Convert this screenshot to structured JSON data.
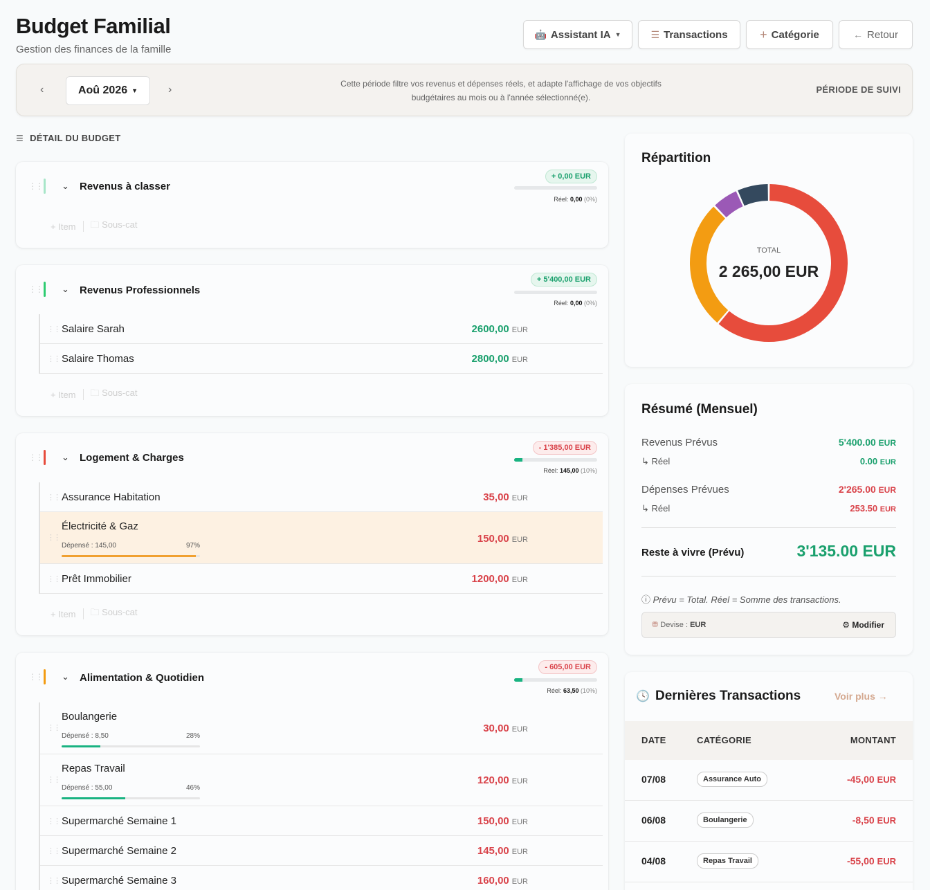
{
  "header": {
    "title": "Budget Familial",
    "subtitle": "Gestion des finances de la famille",
    "buttons": {
      "assistant": "Assistant IA",
      "transactions": "Transactions",
      "category": "Catégorie",
      "back": "Retour"
    }
  },
  "period": {
    "month": "Aoû 2026",
    "note_line1": "Cette période filtre vos revenus et dépenses réels, et adapte l'affichage de vos objectifs",
    "note_line2": "budgétaires au mois ou à l'année sélectionné(e).",
    "tag": "PÉRIODE DE SUIVI"
  },
  "budget": {
    "section_title": "DÉTAIL DU BUDGET",
    "action_item": "Item",
    "action_subcat": "Sous-cat",
    "unit": "EUR",
    "spent_label": "Dépensé :",
    "real_label": "Réel:",
    "categories": [
      {
        "name": "Revenus à classer",
        "color": "#a8e6c9",
        "badge": "+ 0,00 EUR",
        "real": "0,00",
        "real_pct": "(0%)",
        "progress_pct": 0,
        "items": []
      },
      {
        "name": "Revenus Professionnels",
        "color": "#2ecc71",
        "badge": "+ 5'400,00 EUR",
        "real": "0,00",
        "real_pct": "(0%)",
        "progress_pct": 0,
        "items": [
          {
            "name": "Salaire Sarah",
            "amount": "2600,00"
          },
          {
            "name": "Salaire Thomas",
            "amount": "2800,00"
          }
        ]
      },
      {
        "name": "Logement & Charges",
        "color": "#e74c3c",
        "badge": "- 1'385,00 EUR",
        "real": "145,00",
        "real_pct": "(10%)",
        "progress_pct": 10,
        "items": [
          {
            "name": "Assurance Habitation",
            "amount": "35,00"
          },
          {
            "name": "Électricité & Gaz",
            "amount": "150,00",
            "spent": "145,00",
            "pct": "97%",
            "progress": 97
          },
          {
            "name": "Prêt Immobilier",
            "amount": "1200,00"
          }
        ]
      },
      {
        "name": "Alimentation & Quotidien",
        "color": "#f39c12",
        "badge": "- 605,00 EUR",
        "real": "63,50",
        "real_pct": "(10%)",
        "progress_pct": 10,
        "items": [
          {
            "name": "Boulangerie",
            "amount": "30,00",
            "spent": "8,50",
            "pct": "28%",
            "progress": 28
          },
          {
            "name": "Repas Travail",
            "amount": "120,00",
            "spent": "55,00",
            "pct": "46%",
            "progress": 46
          },
          {
            "name": "Supermarché Semaine 1",
            "amount": "150,00"
          },
          {
            "name": "Supermarché Semaine 2",
            "amount": "145,00"
          },
          {
            "name": "Supermarché Semaine 3",
            "amount": "160,00"
          }
        ]
      }
    ]
  },
  "repartition": {
    "title": "Répartition",
    "total_label": "TOTAL",
    "total_value": "2 265,00 EUR",
    "slices": [
      {
        "value": 1385,
        "color": "#e74c3c"
      },
      {
        "value": 605,
        "color": "#f39c12"
      },
      {
        "value": 125,
        "color": "#9b59b6"
      },
      {
        "value": 150,
        "color": "#34495e"
      }
    ]
  },
  "summary": {
    "title": "Résumé (Mensuel)",
    "rev_label": "Revenus Prévus",
    "rev_value": "5'400.00",
    "rev_real_label": "Réel",
    "rev_real_value": "0.00",
    "dep_label": "Dépenses Prévues",
    "dep_value": "2'265.00",
    "dep_real_label": "Réel",
    "dep_real_value": "253.50",
    "rest_label": "Reste à vivre (Prévu)",
    "rest_value": "3'135.00",
    "unit": "EUR",
    "note": "Prévu = Total. Réel = Somme des transactions.",
    "currency_label": "Devise :",
    "currency": "EUR",
    "modify": "Modifier"
  },
  "transactions": {
    "title": "Dernières Transactions",
    "see_more": "Voir plus",
    "col_date": "DATE",
    "col_category": "CATÉGORIE",
    "col_amount": "MONTANT",
    "rows": [
      {
        "date": "07/08",
        "category": "Assurance Auto",
        "amount": "-45,00"
      },
      {
        "date": "06/08",
        "category": "Boulangerie",
        "amount": "-8,50"
      },
      {
        "date": "04/08",
        "category": "Repas Travail",
        "amount": "-55,00"
      }
    ]
  }
}
